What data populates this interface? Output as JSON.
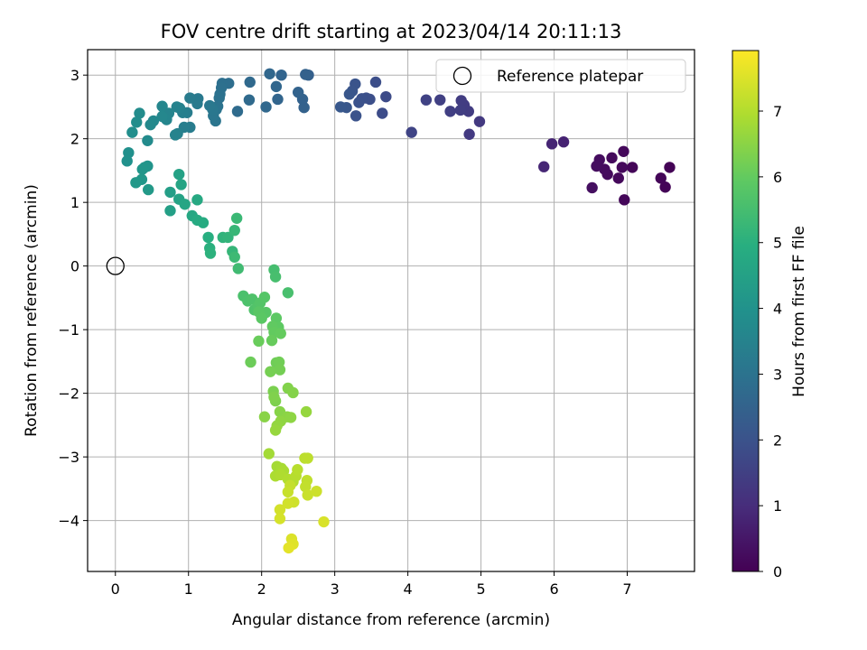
{
  "chart_data": {
    "type": "scatter",
    "title": "FOV centre drift starting at 2023/04/14 20:11:13",
    "xlabel": "Angular distance from reference (arcmin)",
    "ylabel": "Rotation from reference (arcmin)",
    "xlim": [
      -0.38,
      7.92
    ],
    "ylim": [
      -4.8,
      3.4
    ],
    "xticks": [
      "0",
      "1",
      "2",
      "3",
      "4",
      "5",
      "6",
      "7"
    ],
    "yticks": [
      "−4",
      "−3",
      "−2",
      "−1",
      "0",
      "1",
      "2",
      "3"
    ],
    "grid": true,
    "legend": {
      "position": "top-right",
      "label": "Reference platepar"
    },
    "colorbar": {
      "label": "Hours from first FF file",
      "range": [
        0,
        7.92
      ],
      "ticks": [
        "0",
        "1",
        "2",
        "3",
        "4",
        "5",
        "6",
        "7"
      ],
      "colormap": "viridis"
    },
    "reference": {
      "x": 0,
      "y": 0
    },
    "points": [
      [
        7.58,
        1.55,
        0.05
      ],
      [
        7.52,
        1.24,
        0.07
      ],
      [
        7.46,
        1.38,
        0.09
      ],
      [
        7.07,
        1.55,
        0.11
      ],
      [
        6.96,
        1.04,
        0.13
      ],
      [
        6.95,
        1.8,
        0.15
      ],
      [
        6.93,
        1.55,
        0.17
      ],
      [
        6.88,
        1.38,
        0.19
      ],
      [
        6.79,
        1.7,
        0.21
      ],
      [
        6.73,
        1.44,
        0.23
      ],
      [
        6.69,
        1.52,
        0.25
      ],
      [
        6.62,
        1.67,
        0.27
      ],
      [
        6.58,
        1.57,
        0.29
      ],
      [
        6.52,
        1.23,
        0.31
      ],
      [
        6.13,
        1.95,
        0.75
      ],
      [
        5.97,
        1.92,
        0.8
      ],
      [
        5.86,
        1.56,
        0.85
      ],
      [
        4.98,
        2.27,
        1.3
      ],
      [
        4.84,
        2.07,
        1.35
      ],
      [
        4.83,
        2.43,
        1.38
      ],
      [
        4.77,
        2.53,
        1.4
      ],
      [
        4.73,
        2.6,
        1.42
      ],
      [
        4.72,
        2.45,
        1.45
      ],
      [
        4.58,
        2.43,
        1.48
      ],
      [
        4.44,
        2.61,
        1.5
      ],
      [
        4.25,
        2.61,
        1.55
      ],
      [
        4.05,
        2.1,
        1.6
      ],
      [
        3.7,
        2.66,
        1.8
      ],
      [
        3.65,
        2.4,
        1.83
      ],
      [
        3.56,
        2.89,
        1.86
      ],
      [
        3.48,
        2.62,
        1.89
      ],
      [
        3.43,
        2.64,
        1.92
      ],
      [
        3.37,
        2.63,
        1.95
      ],
      [
        3.33,
        2.57,
        1.98
      ],
      [
        3.29,
        2.36,
        2.01
      ],
      [
        3.28,
        2.86,
        2.04
      ],
      [
        3.24,
        2.75,
        2.07
      ],
      [
        3.2,
        2.7,
        2.1
      ],
      [
        3.16,
        2.49,
        2.13
      ],
      [
        3.08,
        2.5,
        2.16
      ],
      [
        2.64,
        3.0,
        2.4
      ],
      [
        2.6,
        3.01,
        2.43
      ],
      [
        2.58,
        2.49,
        2.46
      ],
      [
        2.56,
        2.62,
        2.49
      ],
      [
        2.5,
        2.73,
        2.52
      ],
      [
        2.27,
        3.0,
        2.55
      ],
      [
        2.22,
        2.62,
        2.58
      ],
      [
        2.2,
        2.82,
        2.61
      ],
      [
        2.11,
        3.02,
        2.64
      ],
      [
        2.06,
        2.5,
        2.67
      ],
      [
        1.84,
        2.89,
        2.7
      ],
      [
        1.83,
        2.61,
        2.73
      ],
      [
        1.67,
        2.43,
        2.76
      ],
      [
        1.55,
        2.87,
        2.85
      ],
      [
        1.46,
        2.87,
        2.88
      ],
      [
        1.45,
        2.8,
        2.91
      ],
      [
        1.43,
        2.7,
        2.94
      ],
      [
        1.42,
        2.64,
        2.97
      ],
      [
        1.4,
        2.51,
        3.0
      ],
      [
        1.38,
        2.46,
        3.03
      ],
      [
        1.37,
        2.28,
        3.06
      ],
      [
        1.34,
        2.36,
        3.09
      ],
      [
        1.33,
        2.46,
        3.12
      ],
      [
        1.29,
        2.52,
        3.15
      ],
      [
        1.13,
        2.63,
        3.2
      ],
      [
        1.12,
        2.55,
        3.23
      ],
      [
        1.02,
        2.64,
        3.26
      ],
      [
        1.02,
        2.18,
        3.29
      ],
      [
        0.98,
        2.41,
        3.32
      ],
      [
        0.94,
        2.18,
        3.35
      ],
      [
        0.92,
        2.41,
        3.38
      ],
      [
        0.88,
        2.48,
        3.41
      ],
      [
        0.85,
        2.08,
        3.44
      ],
      [
        0.84,
        2.5,
        3.47
      ],
      [
        0.82,
        2.06,
        3.5
      ],
      [
        0.73,
        2.4,
        3.55
      ],
      [
        0.7,
        2.3,
        3.58
      ],
      [
        0.64,
        2.51,
        3.61
      ],
      [
        0.64,
        2.35,
        3.64
      ],
      [
        0.52,
        2.28,
        3.68
      ],
      [
        0.48,
        2.22,
        3.72
      ],
      [
        0.44,
        1.97,
        3.76
      ],
      [
        0.33,
        2.4,
        3.8
      ],
      [
        0.29,
        2.26,
        3.84
      ],
      [
        0.23,
        2.1,
        3.88
      ],
      [
        0.18,
        1.78,
        3.92
      ],
      [
        0.16,
        1.65,
        3.96
      ],
      [
        0.44,
        1.57,
        4.05
      ],
      [
        0.4,
        1.55,
        4.09
      ],
      [
        0.37,
        1.52,
        4.13
      ],
      [
        0.36,
        1.36,
        4.17
      ],
      [
        0.28,
        1.31,
        4.21
      ],
      [
        0.45,
        1.2,
        4.25
      ],
      [
        0.75,
        1.16,
        4.4
      ],
      [
        0.75,
        0.87,
        4.45
      ],
      [
        0.87,
        1.44,
        4.5
      ],
      [
        0.87,
        1.05,
        4.55
      ],
      [
        0.9,
        1.28,
        4.6
      ],
      [
        0.95,
        0.97,
        4.65
      ],
      [
        1.05,
        0.79,
        4.7
      ],
      [
        1.12,
        1.04,
        4.75
      ],
      [
        1.12,
        0.72,
        4.8
      ],
      [
        1.2,
        0.68,
        4.85
      ],
      [
        1.27,
        0.45,
        4.95
      ],
      [
        1.29,
        0.28,
        5.0
      ],
      [
        1.3,
        0.2,
        5.05
      ],
      [
        1.47,
        0.45,
        5.1
      ],
      [
        1.54,
        0.45,
        5.15
      ],
      [
        1.6,
        0.23,
        5.2
      ],
      [
        1.63,
        0.56,
        5.25
      ],
      [
        1.66,
        0.75,
        5.3
      ],
      [
        1.63,
        0.14,
        5.35
      ],
      [
        1.68,
        -0.04,
        5.4
      ],
      [
        2.17,
        -0.06,
        5.5
      ],
      [
        2.19,
        -0.17,
        5.53
      ],
      [
        2.36,
        -0.42,
        5.56
      ],
      [
        1.75,
        -0.47,
        5.6
      ],
      [
        1.81,
        -0.55,
        5.63
      ],
      [
        1.87,
        -0.52,
        5.66
      ],
      [
        1.9,
        -0.69,
        5.69
      ],
      [
        1.95,
        -0.63,
        5.72
      ],
      [
        1.98,
        -0.58,
        5.75
      ],
      [
        2.04,
        -0.49,
        5.78
      ],
      [
        2.06,
        -0.73,
        5.81
      ],
      [
        1.96,
        -0.72,
        5.84
      ],
      [
        2.0,
        -0.82,
        5.87
      ],
      [
        2.2,
        -0.82,
        5.9
      ],
      [
        2.23,
        -0.96,
        5.93
      ],
      [
        2.15,
        -0.95,
        5.96
      ],
      [
        2.17,
        -1.04,
        5.99
      ],
      [
        2.26,
        -1.06,
        6.02
      ],
      [
        2.14,
        -1.17,
        6.05
      ],
      [
        1.96,
        -1.18,
        6.08
      ],
      [
        1.85,
        -1.51,
        6.12
      ],
      [
        2.2,
        -1.52,
        6.15
      ],
      [
        2.24,
        -1.51,
        6.18
      ],
      [
        2.25,
        -1.63,
        6.21
      ],
      [
        2.12,
        -1.66,
        6.24
      ],
      [
        2.16,
        -1.97,
        6.3
      ],
      [
        2.19,
        -2.12,
        6.33
      ],
      [
        2.17,
        -2.06,
        6.36
      ],
      [
        2.36,
        -1.92,
        6.39
      ],
      [
        2.43,
        -1.99,
        6.42
      ],
      [
        2.25,
        -2.29,
        6.45
      ],
      [
        2.04,
        -2.37,
        6.48
      ],
      [
        2.35,
        -2.37,
        6.51
      ],
      [
        2.4,
        -2.38,
        6.54
      ],
      [
        2.26,
        -2.44,
        6.57
      ],
      [
        2.21,
        -2.51,
        6.6
      ],
      [
        2.61,
        -2.29,
        6.63
      ],
      [
        2.19,
        -2.58,
        6.66
      ],
      [
        2.1,
        -2.95,
        6.8
      ],
      [
        2.21,
        -3.15,
        6.83
      ],
      [
        2.27,
        -3.18,
        6.86
      ],
      [
        2.3,
        -3.22,
        6.89
      ],
      [
        2.19,
        -3.3,
        6.92
      ],
      [
        2.26,
        -3.28,
        6.95
      ],
      [
        2.36,
        -3.35,
        6.98
      ],
      [
        2.43,
        -3.39,
        7.01
      ],
      [
        2.47,
        -3.3,
        7.04
      ],
      [
        2.49,
        -3.2,
        7.07
      ],
      [
        2.59,
        -3.02,
        7.1
      ],
      [
        2.63,
        -3.02,
        7.13
      ],
      [
        2.62,
        -3.37,
        7.16
      ],
      [
        2.6,
        -3.47,
        7.19
      ],
      [
        2.39,
        -3.45,
        7.22
      ],
      [
        2.36,
        -3.55,
        7.25
      ],
      [
        2.63,
        -3.6,
        7.28
      ],
      [
        2.75,
        -3.54,
        7.31
      ],
      [
        2.44,
        -3.71,
        7.34
      ],
      [
        2.36,
        -3.73,
        7.37
      ],
      [
        2.25,
        -3.83,
        7.4
      ],
      [
        2.25,
        -3.97,
        7.43
      ],
      [
        2.85,
        -4.02,
        7.46
      ],
      [
        2.41,
        -4.29,
        7.5
      ],
      [
        2.43,
        -4.37,
        7.55
      ],
      [
        2.37,
        -4.43,
        7.6
      ]
    ]
  }
}
